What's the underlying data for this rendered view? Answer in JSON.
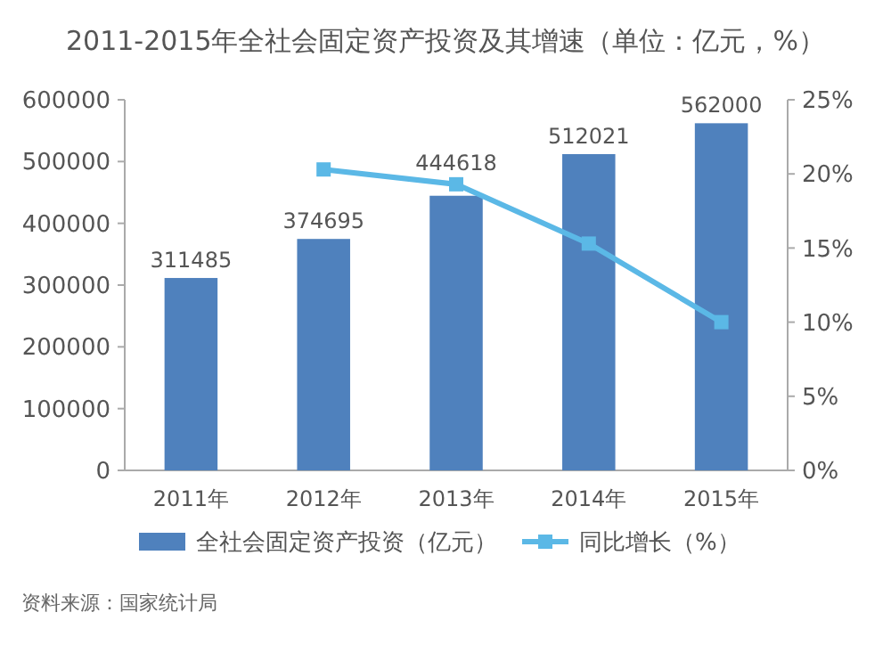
{
  "chart_data": {
    "type": "bar",
    "title": "2011-2015年全社会固定资产投资及其增速（单位：亿元，%）",
    "categories": [
      "2011年",
      "2012年",
      "2013年",
      "2014年",
      "2015年"
    ],
    "series": [
      {
        "name": "全社会固定资产投资（亿元）",
        "type": "bar",
        "color": "#4f81bd",
        "values": [
          311485,
          374695,
          444618,
          512021,
          562000
        ],
        "data_labels": true
      },
      {
        "name": "同比增长（%）",
        "type": "line",
        "axis": "y2",
        "color": "#5bb8e6",
        "values": [
          null,
          20.3,
          19.3,
          15.3,
          10.0
        ],
        "marker": "square"
      }
    ],
    "ylim": [
      0,
      600000
    ],
    "yticks": [
      0,
      100000,
      200000,
      300000,
      400000,
      500000,
      600000
    ],
    "y2lim": [
      0,
      25
    ],
    "y2ticks": [
      {
        "value": 0,
        "label": "0%"
      },
      {
        "value": 5,
        "label": "5%"
      },
      {
        "value": 10,
        "label": "10%"
      },
      {
        "value": 15,
        "label": "15%"
      },
      {
        "value": 20,
        "label": "20%"
      },
      {
        "value": 25,
        "label": "25%"
      }
    ],
    "legend": "bottom",
    "grid": false,
    "annotations": [
      "资料来源：国家统计局"
    ]
  }
}
